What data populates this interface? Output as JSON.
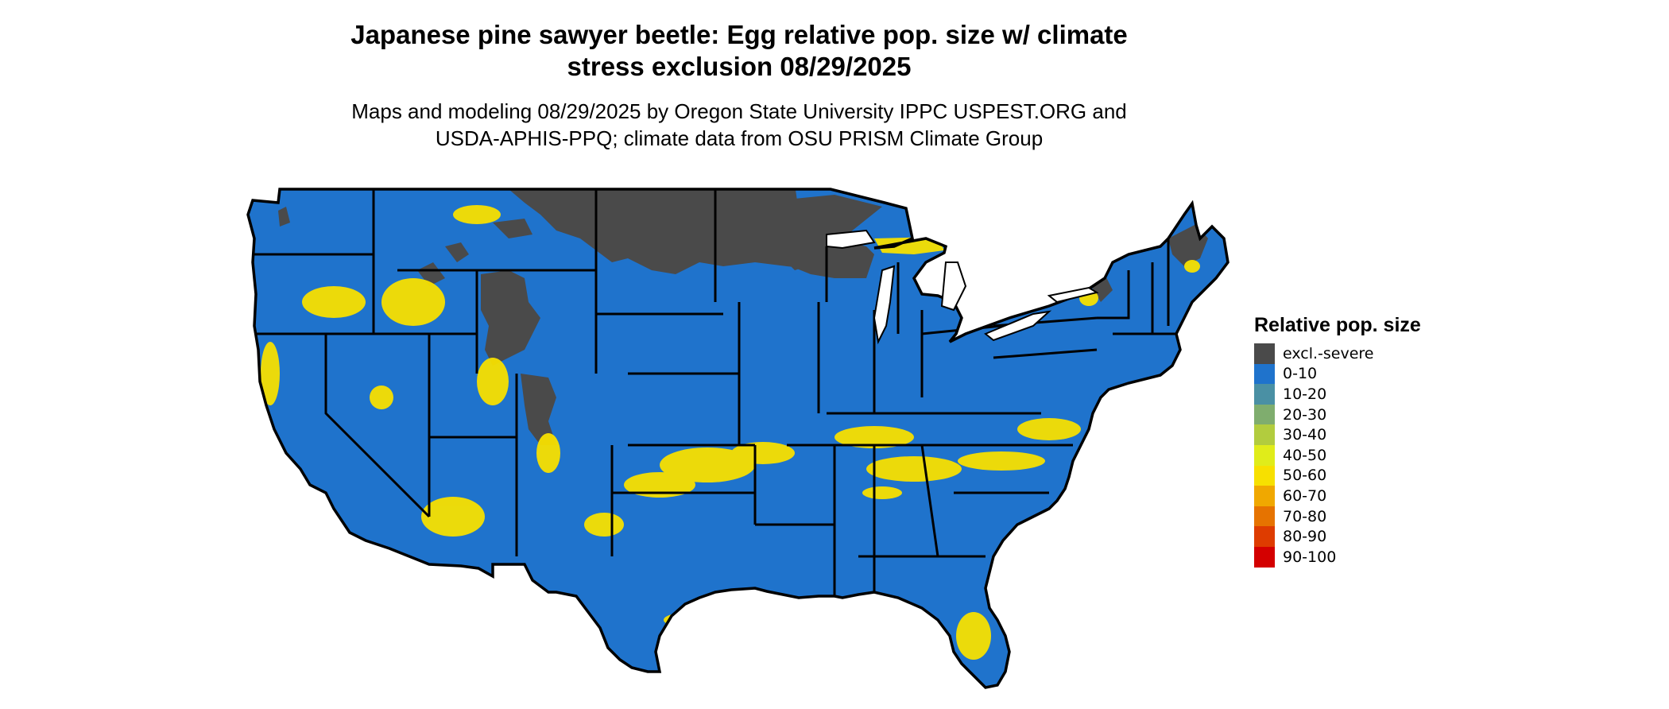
{
  "title": {
    "line1": "Japanese pine sawyer beetle: Egg relative pop. size w/ climate",
    "line2": "stress exclusion 08/29/2025"
  },
  "subtitle": {
    "line1": "Maps and modeling 08/29/2025 by Oregon State University IPPC USPEST.ORG and",
    "line2": "USDA-APHIS-PPQ; climate data from OSU PRISM Climate Group"
  },
  "legend": {
    "title": "Relative pop. size",
    "items": [
      {
        "label": "excl.-severe",
        "color": "#4a4a4a"
      },
      {
        "label": "0-10",
        "color": "#1f73cc"
      },
      {
        "label": "10-20",
        "color": "#4a90a4"
      },
      {
        "label": "20-30",
        "color": "#7fad6e"
      },
      {
        "label": "30-40",
        "color": "#b2cc3e"
      },
      {
        "label": "40-50",
        "color": "#e0ec1a"
      },
      {
        "label": "50-60",
        "color": "#f7e000"
      },
      {
        "label": "60-70",
        "color": "#f0a800"
      },
      {
        "label": "70-80",
        "color": "#e67300"
      },
      {
        "label": "80-90",
        "color": "#de3c00"
      },
      {
        "label": "90-100",
        "color": "#d40000"
      }
    ]
  },
  "map": {
    "base_color": "#1f73cc",
    "excluded_color": "#4a4a4a",
    "hotspot_color": "#f7e000",
    "border_color": "#000000"
  }
}
